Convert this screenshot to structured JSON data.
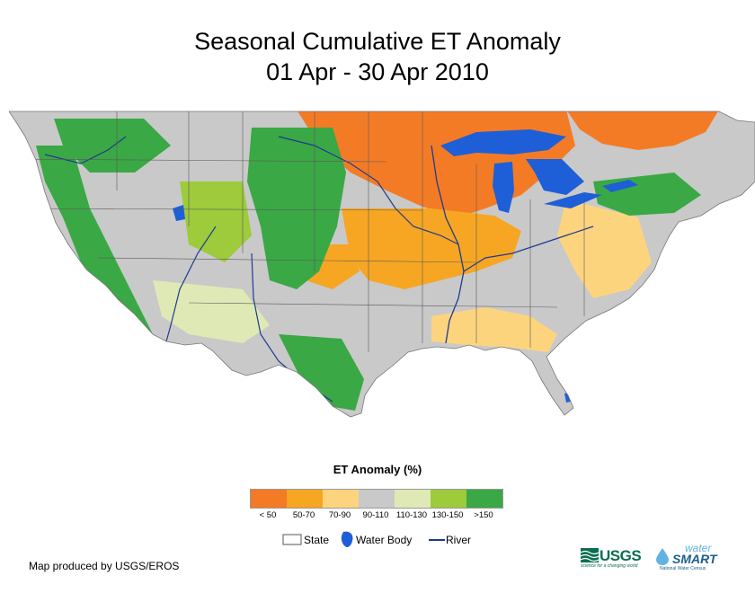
{
  "title": {
    "line1": "Seasonal Cumulative ET Anomaly",
    "line2": "01 Apr - 30 Apr 2010"
  },
  "legend": {
    "title": "ET Anomaly (%)",
    "classes": [
      {
        "label": "< 50",
        "color": "#F47B26"
      },
      {
        "label": "50-70",
        "color": "#F6A623"
      },
      {
        "label": "70-90",
        "color": "#FDD47E"
      },
      {
        "label": "90-110",
        "color": "#C9C9C9"
      },
      {
        "label": "110-130",
        "color": "#DFE9B6"
      },
      {
        "label": "130-150",
        "color": "#9DCB3C"
      },
      {
        "label": ">150",
        "color": "#3AA845"
      }
    ]
  },
  "reference": {
    "state": "State",
    "water_body": "Water Body",
    "river": "River",
    "water_color": "#1E5FD8",
    "river_color": "#1F3A8F"
  },
  "footer": "Map produced by USGS/EROS",
  "logos": {
    "usgs": "USGS",
    "usgs_tagline": "science for a changing world",
    "watersmart_top": "water",
    "watersmart_main": "SMART",
    "watersmart_sub": "National Water Census"
  }
}
